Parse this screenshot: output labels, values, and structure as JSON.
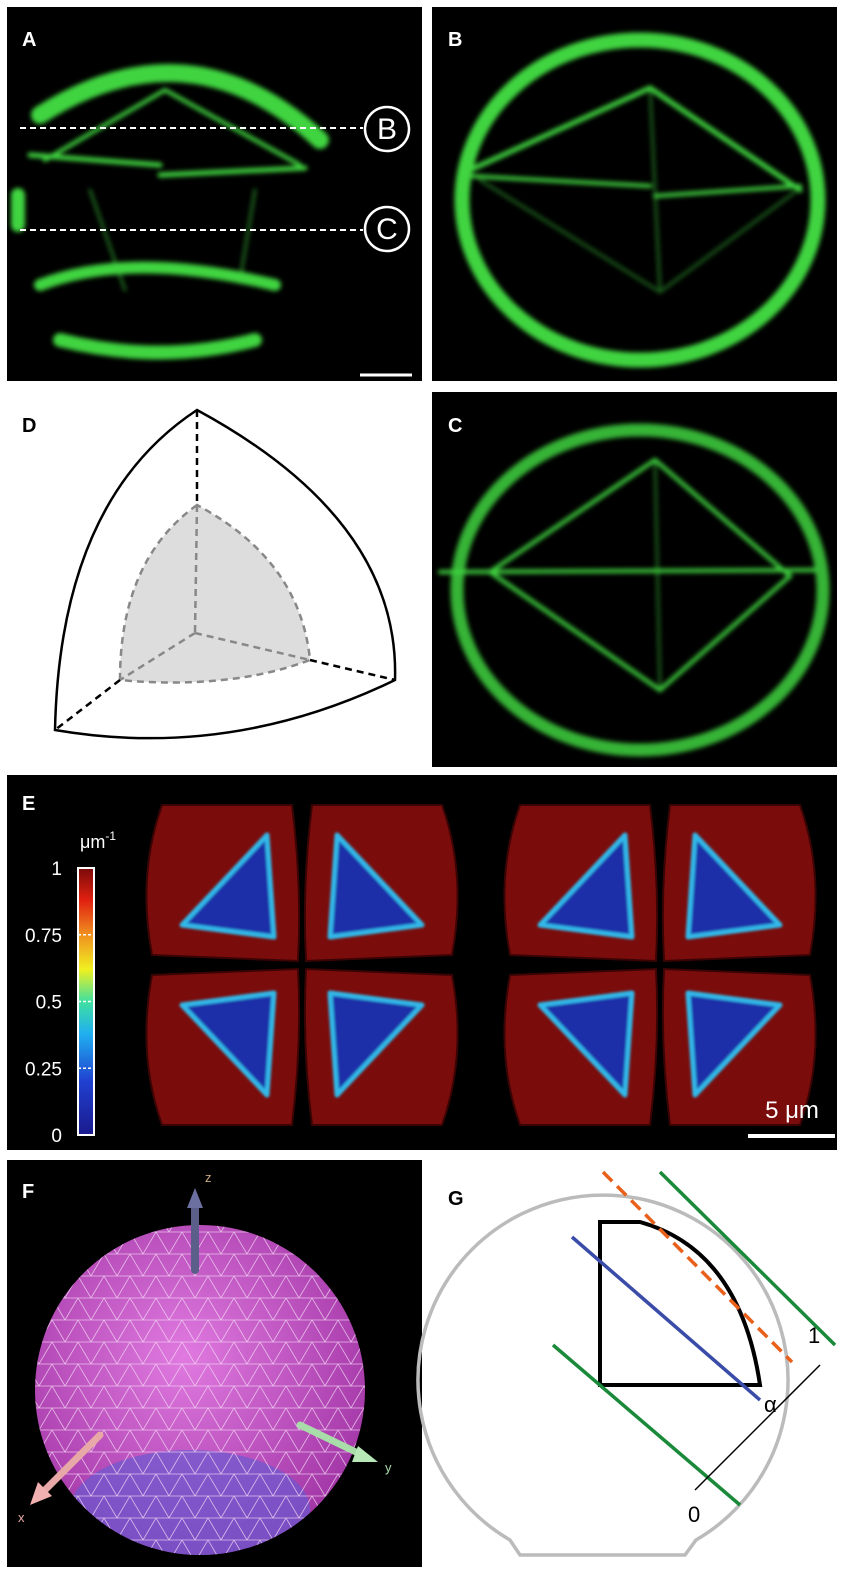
{
  "panels": {
    "a": {
      "label": "A",
      "markers": [
        "B",
        "C"
      ]
    },
    "b": {
      "label": "B"
    },
    "c": {
      "label": "C"
    },
    "d": {
      "label": "D"
    },
    "e": {
      "label": "E",
      "colorbar": {
        "unit": "μm",
        "unit_exponent": "-1",
        "ticks": [
          "1",
          "0.75",
          "0.5",
          "0.25",
          "0"
        ]
      },
      "scale_bar": "5 μm"
    },
    "f": {
      "label": "F",
      "axes": [
        "z",
        "x",
        "y"
      ]
    },
    "g": {
      "label": "G",
      "marks": [
        "1",
        "α",
        "0"
      ]
    }
  }
}
